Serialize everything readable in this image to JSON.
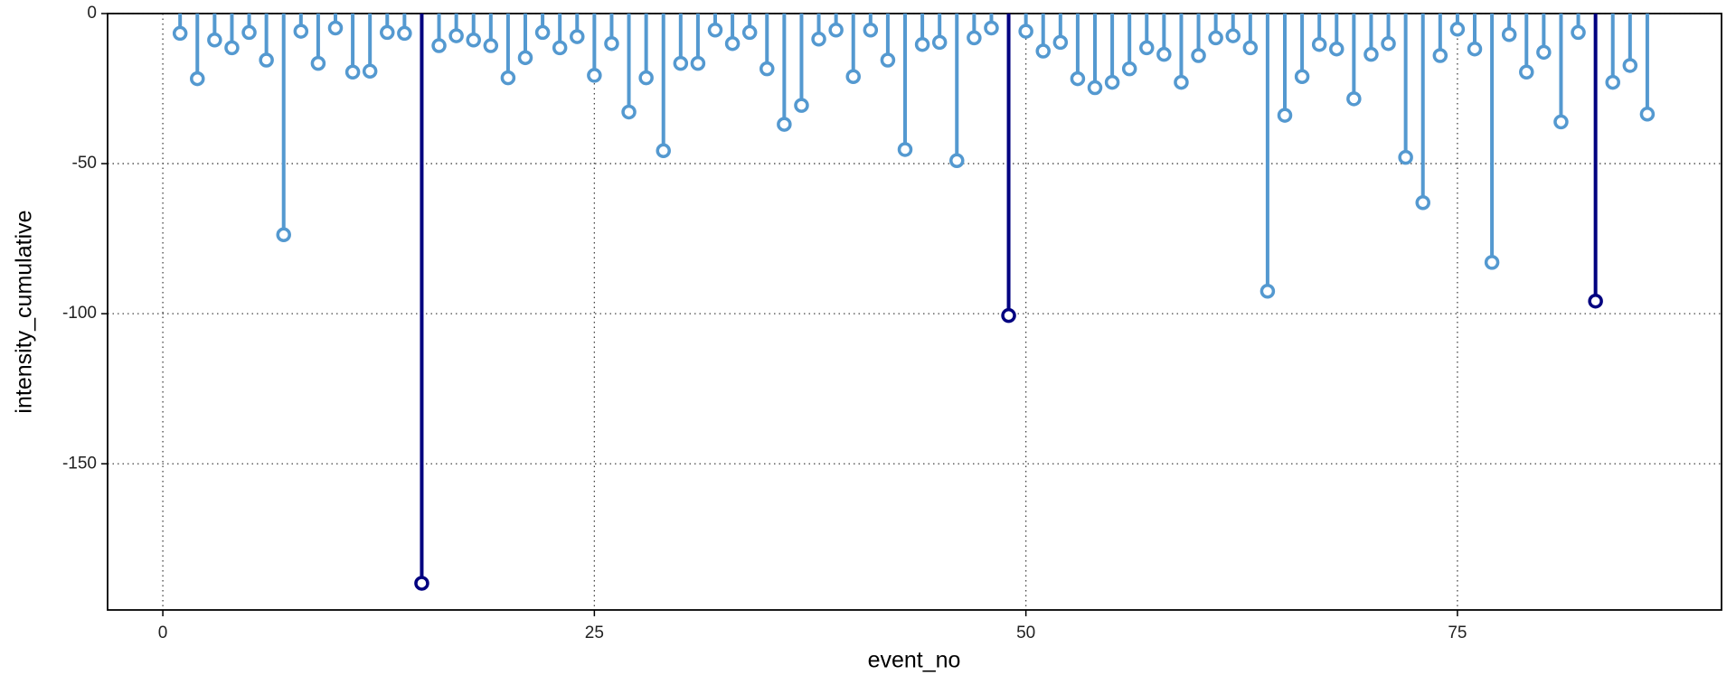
{
  "chart_data": {
    "type": "lollipop",
    "x_label": "event_no",
    "y_label": "intensity_cumulative",
    "xlim": [
      -3.2,
      90.3
    ],
    "ylim": [
      -198.7,
      0
    ],
    "xticks": [
      0,
      25,
      50,
      75
    ],
    "yticks": [
      0,
      -50,
      -100,
      -150
    ],
    "grid": true,
    "series": [
      {
        "color": "#5499d0",
        "x": [
          1,
          2,
          3,
          4,
          5,
          6,
          7,
          8,
          9,
          10,
          11,
          12,
          13,
          14,
          16,
          17,
          18,
          19,
          20,
          21,
          22,
          23,
          24,
          25,
          26,
          27,
          28,
          29,
          30,
          31,
          32,
          33,
          34,
          35,
          36,
          37,
          38,
          39,
          40,
          41,
          42,
          43,
          44,
          45,
          46,
          47,
          48,
          50,
          51,
          52,
          53,
          54,
          55,
          56,
          57,
          58,
          59,
          60,
          61,
          62,
          63,
          64,
          65,
          66,
          67,
          68,
          69,
          70,
          71,
          72,
          73,
          74,
          75,
          76,
          77,
          78,
          79,
          80,
          81,
          82,
          84,
          85,
          86
        ],
        "values": [
          -6.6,
          -21.7,
          -8.8,
          -11.4,
          -6.3,
          -15.5,
          -73.7,
          -5.9,
          -16.6,
          -4.8,
          -19.5,
          -19.2,
          -6.3,
          -6.6,
          -10.7,
          -7.4,
          -8.8,
          -10.7,
          -21.4,
          -14.7,
          -6.3,
          -11.4,
          -7.7,
          -20.6,
          -10,
          -32.8,
          -21.4,
          -45.7,
          -16.6,
          -16.6,
          -5.5,
          -10,
          -6.3,
          -18.4,
          -36.9,
          -30.6,
          -8.5,
          -5.5,
          -21,
          -5.5,
          -15.5,
          -45.3,
          -10.3,
          -9.6,
          -49,
          -8.1,
          -4.8,
          -5.9,
          -12.5,
          -9.6,
          -21.7,
          -24.7,
          -22.9,
          -18.4,
          -11.4,
          -13.6,
          -22.9,
          -14,
          -8.1,
          -7.4,
          -11.4,
          -92.5,
          -33.9,
          -21,
          -10.3,
          -11.8,
          -28.4,
          -13.6,
          -10,
          -47.9,
          -63,
          -14,
          -5.2,
          -11.8,
          -82.9,
          -7,
          -19.5,
          -12.9,
          -36.1,
          -6.3,
          -22.9,
          -17.3,
          -33.5
        ]
      },
      {
        "color": "#000080",
        "x": [
          15,
          49,
          83
        ],
        "values": [
          -189.8,
          -100.6,
          -95.8
        ]
      }
    ]
  }
}
